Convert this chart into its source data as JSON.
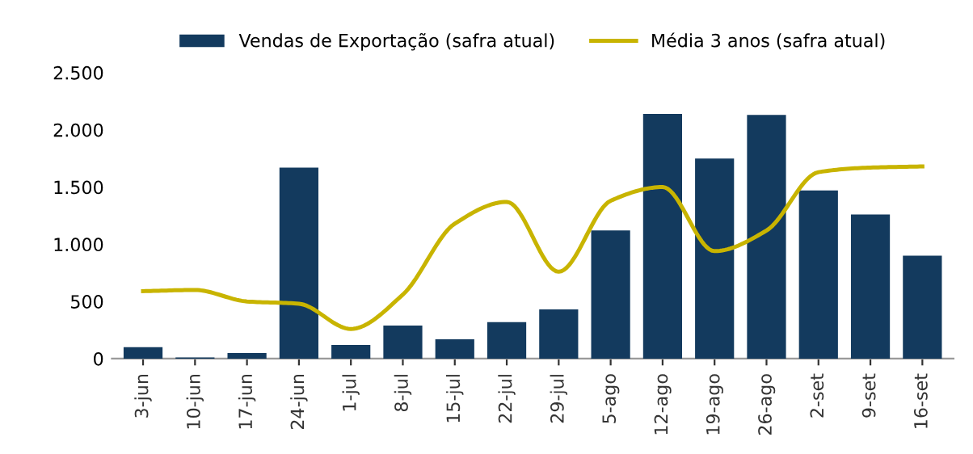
{
  "chart_data": {
    "type": "bar",
    "categories": [
      "3-jun",
      "10-jun",
      "17-jun",
      "24-jun",
      "1-jul",
      "8-jul",
      "15-jul",
      "22-jul",
      "29-jul",
      "5-ago",
      "12-ago",
      "19-ago",
      "26-ago",
      "2-set",
      "9-set",
      "16-set"
    ],
    "series": [
      {
        "name": "Vendas de Exportação (safra atual)",
        "color": "#133a5e",
        "values": [
          100,
          10,
          50,
          1670,
          120,
          290,
          170,
          320,
          430,
          1120,
          2140,
          1750,
          2130,
          1470,
          1260,
          900
        ]
      },
      {
        "name": "Média 3 anos (safra atual)",
        "type": "line",
        "color": "#c8b400",
        "values": [
          590,
          600,
          500,
          480,
          260,
          560,
          1180,
          1370,
          760,
          1380,
          1500,
          940,
          1120,
          1630,
          1670,
          1680
        ]
      }
    ],
    "ylim": [
      0,
      2500
    ],
    "yticks": [
      0,
      {
        "value": 500,
        "label": "500"
      },
      {
        "value": 1000,
        "label": "1.000"
      },
      {
        "value": 1500,
        "label": "1.500"
      },
      {
        "value": 2000,
        "label": "2.000"
      },
      {
        "value": 2500,
        "label": "2.500"
      }
    ],
    "grid": false,
    "legend": "top",
    "marker": "none",
    "line_style": "solid"
  }
}
